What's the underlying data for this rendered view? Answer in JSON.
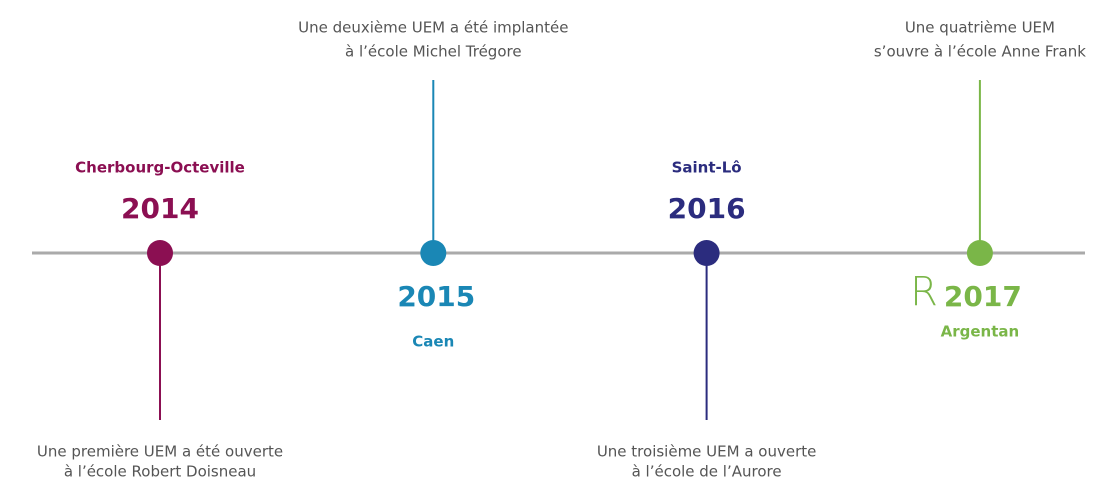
{
  "timeline": {
    "events": [
      {
        "year": "2014",
        "city": "Cherbourg-Octeville",
        "description": [
          "Une première UEM a été ouverte",
          "à l’école Robert Doisneau"
        ],
        "color": "#8b0f52"
      },
      {
        "year": "2015",
        "city": "Caen",
        "description": [
          "Une deuxième UEM a été implantée",
          "à l’école Michel Trégore"
        ],
        "color": "#1a87b5"
      },
      {
        "year": "2016",
        "city": "Saint-Lô",
        "description": [
          "Une troisième UEM a ouverte",
          "à l’école de l’Aurore"
        ],
        "color": "#2b2c7e"
      },
      {
        "year": "2017",
        "city": "Argentan",
        "description": [
          "Une quatrième UEM",
          "s’ouvre à l’école Anne Frank"
        ],
        "color": "#7ab648",
        "marker": "R"
      }
    ]
  }
}
